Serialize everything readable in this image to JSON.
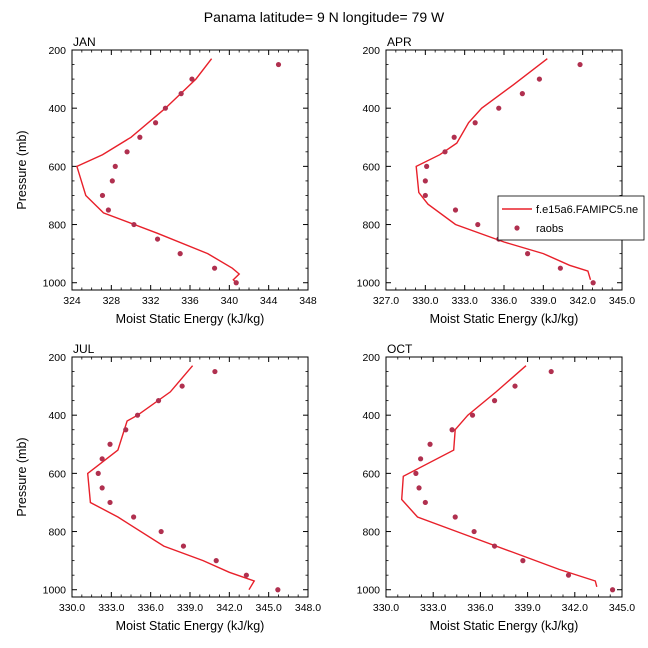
{
  "figure": {
    "title": "Panama  latitude= 9 N longitude= 79 W"
  },
  "chart_data": [
    {
      "type": "line",
      "panel": "JAN",
      "xlabel": "Moist Static Energy (kJ/kg)",
      "ylabel": "Pressure (mb)",
      "xlim": [
        324,
        348
      ],
      "ylim": [
        1025,
        200
      ],
      "x_ticks": [
        "324",
        "328",
        "332",
        "336",
        "340",
        "344",
        "348"
      ],
      "y_ticks": [
        "200",
        "400",
        "600",
        "800",
        "1000"
      ],
      "series": [
        {
          "name": "f.e15a6.FAMIPC5.ne",
          "kind": "line",
          "color": "#e8202a",
          "points": [
            [
              338.2,
              230
            ],
            [
              336.6,
              300
            ],
            [
              333.5,
              400
            ],
            [
              330.0,
              500
            ],
            [
              327.1,
              560
            ],
            [
              324.5,
              600
            ],
            [
              325.4,
              700
            ],
            [
              327.2,
              760
            ],
            [
              332.7,
              830
            ],
            [
              337.8,
              900
            ],
            [
              340.3,
              950
            ],
            [
              341.0,
              970
            ],
            [
              340.4,
              990
            ],
            [
              340.7,
              1000
            ]
          ]
        },
        {
          "name": "raobs",
          "kind": "marker",
          "color": "#b0304f",
          "points": [
            [
              345.0,
              250
            ],
            [
              336.2,
              300
            ],
            [
              335.1,
              350
            ],
            [
              333.5,
              400
            ],
            [
              332.5,
              450
            ],
            [
              330.9,
              500
            ],
            [
              329.6,
              550
            ],
            [
              328.4,
              600
            ],
            [
              328.1,
              650
            ],
            [
              327.1,
              700
            ],
            [
              327.7,
              750
            ],
            [
              330.3,
              800
            ],
            [
              332.7,
              850
            ],
            [
              335.0,
              900
            ],
            [
              338.5,
              950
            ],
            [
              340.7,
              1000
            ]
          ]
        }
      ]
    },
    {
      "type": "line",
      "panel": "APR",
      "xlabel": "Moist Static Energy (kJ/kg)",
      "ylabel": "",
      "xlim": [
        327.0,
        345.0
      ],
      "ylim": [
        1025,
        200
      ],
      "x_ticks": [
        "327.0",
        "330.0",
        "333.0",
        "336.0",
        "339.0",
        "342.0",
        "345.0"
      ],
      "y_ticks": [
        "200",
        "400",
        "600",
        "800",
        "1000"
      ],
      "legend": {
        "position": "center-right",
        "entries": [
          "f.e15a6.FAMIPC5.ne",
          "raobs"
        ]
      },
      "series": [
        {
          "name": "f.e15a6.FAMIPC5.ne",
          "kind": "line",
          "color": "#e8202a",
          "points": [
            [
              339.3,
              230
            ],
            [
              336.7,
              320
            ],
            [
              334.3,
              400
            ],
            [
              333.3,
              450
            ],
            [
              332.4,
              520
            ],
            [
              331.1,
              560
            ],
            [
              329.3,
              600
            ],
            [
              329.5,
              690
            ],
            [
              330.2,
              730
            ],
            [
              332.3,
              800
            ],
            [
              336.0,
              860
            ],
            [
              339.0,
              900
            ],
            [
              341.0,
              940
            ],
            [
              342.4,
              960
            ],
            [
              342.6,
              990
            ]
          ]
        },
        {
          "name": "raobs",
          "kind": "marker",
          "color": "#b0304f",
          "points": [
            [
              341.8,
              250
            ],
            [
              338.7,
              300
            ],
            [
              337.4,
              350
            ],
            [
              335.6,
              400
            ],
            [
              333.8,
              450
            ],
            [
              332.2,
              500
            ],
            [
              331.5,
              550
            ],
            [
              330.1,
              600
            ],
            [
              330.0,
              650
            ],
            [
              330.0,
              700
            ],
            [
              332.3,
              750
            ],
            [
              334.0,
              800
            ],
            [
              335.6,
              850
            ],
            [
              337.8,
              900
            ],
            [
              340.3,
              950
            ],
            [
              342.8,
              1000
            ]
          ]
        }
      ]
    },
    {
      "type": "line",
      "panel": "JUL",
      "xlabel": "Moist Static Energy (kJ/kg)",
      "ylabel": "Pressure (mb)",
      "xlim": [
        330.0,
        348.0
      ],
      "ylim": [
        1025,
        200
      ],
      "x_ticks": [
        "330.0",
        "333.0",
        "336.0",
        "339.0",
        "342.0",
        "345.0",
        "348.0"
      ],
      "y_ticks": [
        "200",
        "400",
        "600",
        "800",
        "1000"
      ],
      "series": [
        {
          "name": "f.e15a6.FAMIPC5.ne",
          "kind": "line",
          "color": "#e8202a",
          "points": [
            [
              339.2,
              230
            ],
            [
              337.5,
              320
            ],
            [
              335.0,
              400
            ],
            [
              334.2,
              420
            ],
            [
              333.5,
              520
            ],
            [
              331.2,
              600
            ],
            [
              331.4,
              700
            ],
            [
              333.5,
              750
            ],
            [
              337.0,
              850
            ],
            [
              340.0,
              900
            ],
            [
              342.0,
              940
            ],
            [
              343.9,
              970
            ],
            [
              343.5,
              1000
            ]
          ]
        },
        {
          "name": "raobs",
          "kind": "marker",
          "color": "#b0304f",
          "points": [
            [
              340.9,
              250
            ],
            [
              338.4,
              300
            ],
            [
              336.6,
              350
            ],
            [
              335.0,
              400
            ],
            [
              334.1,
              450
            ],
            [
              332.9,
              500
            ],
            [
              332.3,
              550
            ],
            [
              332.0,
              600
            ],
            [
              332.3,
              650
            ],
            [
              332.9,
              700
            ],
            [
              334.7,
              750
            ],
            [
              336.8,
              800
            ],
            [
              338.5,
              850
            ],
            [
              341.0,
              900
            ],
            [
              343.3,
              950
            ],
            [
              345.7,
              1000
            ]
          ]
        }
      ]
    },
    {
      "type": "line",
      "panel": "OCT",
      "xlabel": "Moist Static Energy (kJ/kg)",
      "ylabel": "",
      "xlim": [
        330.0,
        345.0
      ],
      "ylim": [
        1025,
        200
      ],
      "x_ticks": [
        "330.0",
        "333.0",
        "336.0",
        "339.0",
        "342.0",
        "345.0"
      ],
      "y_ticks": [
        "200",
        "400",
        "600",
        "800",
        "1000"
      ],
      "series": [
        {
          "name": "f.e15a6.FAMIPC5.ne",
          "kind": "line",
          "color": "#e8202a",
          "points": [
            [
              338.9,
              230
            ],
            [
              337.0,
              320
            ],
            [
              335.2,
              400
            ],
            [
              334.4,
              450
            ],
            [
              334.3,
              520
            ],
            [
              331.1,
              610
            ],
            [
              331.0,
              690
            ],
            [
              332.0,
              750
            ],
            [
              335.0,
              810
            ],
            [
              338.0,
              870
            ],
            [
              341.0,
              930
            ],
            [
              343.3,
              970
            ],
            [
              343.4,
              990
            ]
          ]
        },
        {
          "name": "raobs",
          "kind": "marker",
          "color": "#b0304f",
          "points": [
            [
              340.5,
              250
            ],
            [
              338.2,
              300
            ],
            [
              336.9,
              350
            ],
            [
              335.5,
              400
            ],
            [
              334.2,
              450
            ],
            [
              332.8,
              500
            ],
            [
              332.2,
              550
            ],
            [
              331.9,
              600
            ],
            [
              332.1,
              650
            ],
            [
              332.5,
              700
            ],
            [
              334.4,
              750
            ],
            [
              335.6,
              800
            ],
            [
              336.9,
              850
            ],
            [
              338.7,
              900
            ],
            [
              341.6,
              950
            ],
            [
              344.4,
              1000
            ]
          ]
        }
      ]
    }
  ]
}
